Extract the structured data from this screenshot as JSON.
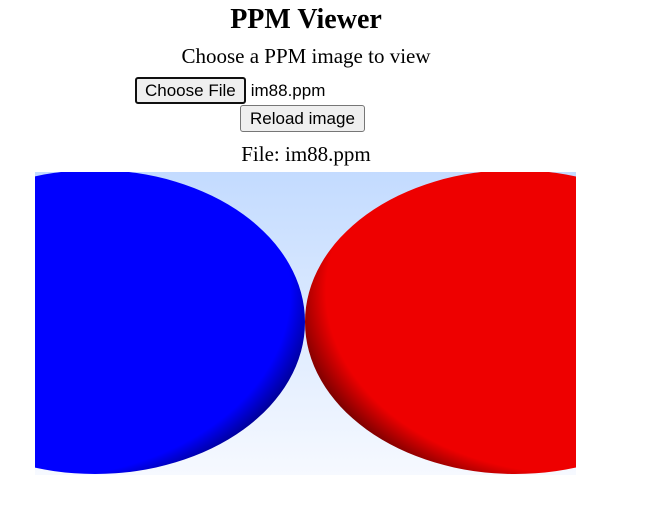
{
  "page": {
    "title": "PPM Viewer",
    "subtitle": "Choose a PPM image to view"
  },
  "file_input": {
    "button_label": "Choose File",
    "selected_file": "im88.ppm"
  },
  "reload_button": {
    "label": "Reload image"
  },
  "current_file": {
    "label": "File: im88.ppm"
  },
  "image": {
    "colors": {
      "sky_top": "#c3dbff",
      "sky_bottom": "#f6f9ff",
      "left_sphere": "#0000ff",
      "left_sphere_shadow": "#00002a",
      "right_sphere": "#ee0000",
      "right_sphere_shadow": "#1a0000"
    }
  }
}
